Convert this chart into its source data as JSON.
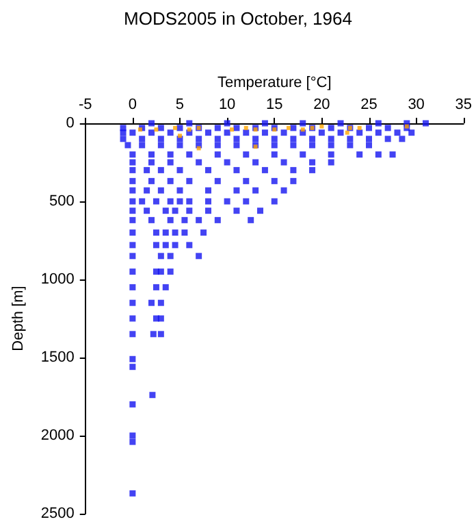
{
  "chart_data": {
    "type": "scatter",
    "title": "MODS2005 in October, 1964",
    "xlabel": "Temperature [°C]",
    "ylabel": "Depth [m]",
    "xlim": [
      -5,
      35
    ],
    "xticks": [
      -5,
      0,
      5,
      10,
      15,
      20,
      25,
      30,
      35
    ],
    "ylim": [
      2500,
      0
    ],
    "yticks": [
      0,
      500,
      1000,
      1500,
      2000,
      2500
    ],
    "grid": false,
    "marker": "square",
    "series": [
      {
        "color": "#1414f0",
        "x": [
          2,
          6,
          10,
          14,
          18,
          22,
          26,
          29,
          31,
          -1,
          1,
          3,
          5,
          7,
          9,
          11,
          13,
          15,
          17,
          19,
          21,
          23,
          25,
          27,
          29,
          -1,
          0,
          2,
          4,
          6,
          8,
          10,
          12,
          14,
          16,
          18,
          20,
          22,
          24,
          26,
          28,
          29.5,
          -1,
          1,
          3,
          5,
          7,
          9,
          11,
          13,
          15,
          17,
          19,
          21,
          23,
          25,
          27,
          28.5,
          -0.5,
          1,
          3,
          5,
          7,
          9,
          11,
          13,
          15,
          17,
          19,
          21,
          23,
          25,
          0,
          2,
          4,
          6,
          9,
          12,
          15,
          18,
          21,
          24,
          26,
          27.5,
          0,
          2,
          4,
          7,
          10,
          13,
          16,
          19,
          21,
          0,
          1.5,
          3,
          5,
          8,
          11,
          14,
          17,
          19,
          0,
          2,
          4,
          6,
          9,
          12,
          15,
          17,
          0,
          1.5,
          3,
          5,
          8,
          11,
          13,
          16,
          0,
          1,
          2.5,
          4,
          5,
          6,
          8,
          10,
          12,
          15,
          0,
          1.5,
          3.5,
          4.5,
          6,
          8,
          11,
          13.5,
          0,
          2,
          4,
          5.5,
          7,
          9,
          12.5,
          0,
          2.5,
          3.5,
          4.5,
          5.5,
          7.5,
          0,
          2.5,
          3.5,
          4.5,
          6,
          0,
          3,
          4,
          7,
          0,
          2.5,
          3,
          4,
          0,
          2.5,
          3.5,
          0,
          2,
          3,
          0,
          2.5,
          3,
          0,
          2.2,
          3,
          0,
          0,
          2.1,
          0,
          0,
          0,
          0
        ],
        "values": [
          0,
          0,
          0,
          0,
          0,
          0,
          0,
          0,
          0,
          30,
          30,
          30,
          30,
          30,
          30,
          30,
          30,
          30,
          30,
          30,
          30,
          30,
          30,
          30,
          30,
          60,
          60,
          60,
          60,
          60,
          60,
          60,
          60,
          60,
          60,
          60,
          60,
          60,
          60,
          60,
          60,
          60,
          100,
          100,
          100,
          100,
          100,
          100,
          100,
          100,
          100,
          100,
          100,
          100,
          100,
          100,
          100,
          100,
          140,
          140,
          140,
          140,
          140,
          140,
          140,
          140,
          140,
          140,
          140,
          140,
          140,
          140,
          200,
          200,
          200,
          200,
          200,
          200,
          200,
          200,
          200,
          200,
          200,
          200,
          250,
          250,
          250,
          250,
          250,
          250,
          250,
          250,
          250,
          300,
          300,
          300,
          300,
          300,
          300,
          300,
          300,
          300,
          370,
          370,
          370,
          370,
          370,
          370,
          370,
          370,
          430,
          430,
          430,
          430,
          430,
          430,
          430,
          430,
          500,
          500,
          500,
          500,
          500,
          500,
          500,
          500,
          500,
          500,
          560,
          560,
          560,
          560,
          560,
          560,
          560,
          560,
          620,
          620,
          620,
          620,
          620,
          620,
          620,
          700,
          700,
          700,
          700,
          700,
          700,
          780,
          780,
          780,
          780,
          780,
          850,
          850,
          850,
          850,
          950,
          950,
          950,
          950,
          1050,
          1050,
          1050,
          1150,
          1150,
          1150,
          1250,
          1250,
          1250,
          1350,
          1350,
          1350,
          1510,
          1560,
          1740,
          1800,
          2000,
          2040,
          2370
        ]
      },
      {
        "color": "#ffa500",
        "x": [
          0.8,
          2.5,
          4.5,
          6,
          7,
          10.5,
          12,
          13,
          15,
          16.5,
          18,
          19,
          20,
          23,
          24,
          29,
          5,
          7,
          13,
          22.7
        ],
        "values": [
          40,
          40,
          30,
          40,
          30,
          40,
          30,
          40,
          40,
          30,
          40,
          30,
          20,
          30,
          30,
          20,
          80,
          160,
          150,
          60
        ]
      }
    ]
  }
}
